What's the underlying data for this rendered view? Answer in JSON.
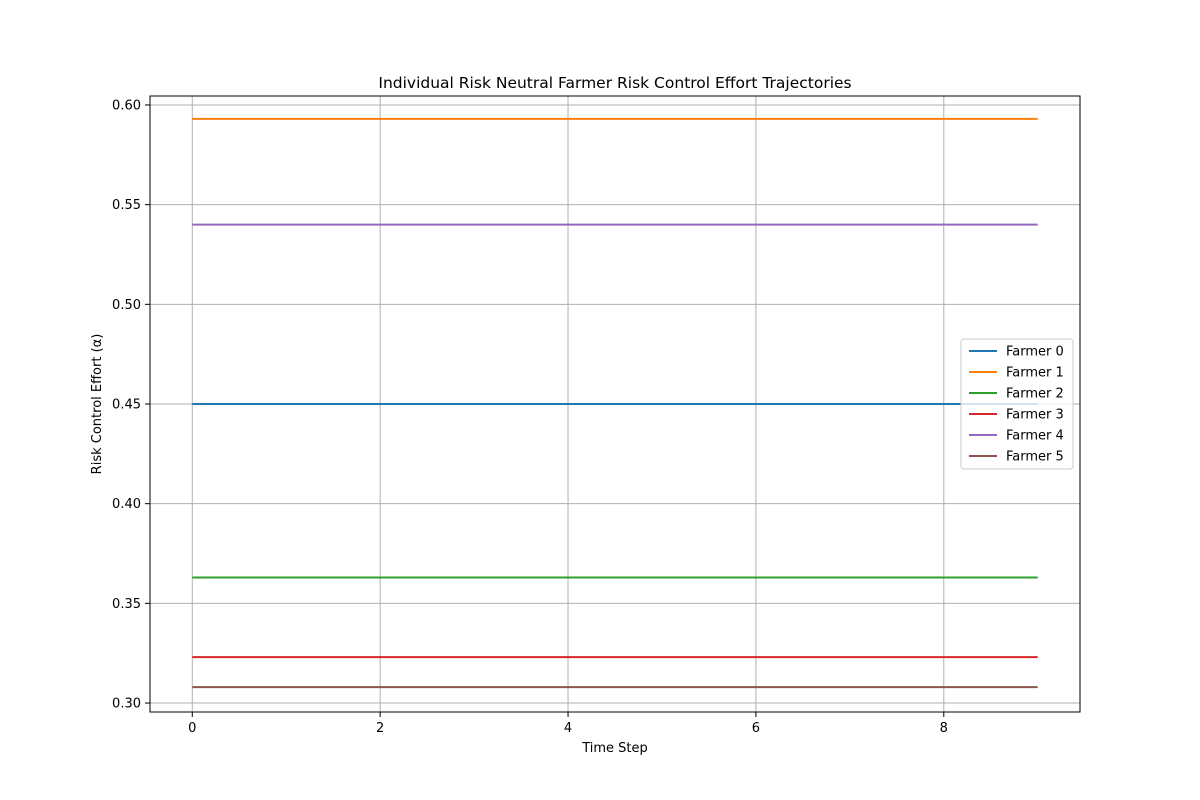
{
  "chart_data": {
    "type": "line",
    "title": "Individual Risk Neutral Farmer Risk Control Effort Trajectories",
    "xlabel": "Time Step",
    "ylabel": "Risk Control Effort (α)",
    "x": [
      0,
      1,
      2,
      3,
      4,
      5,
      6,
      7,
      8,
      9
    ],
    "xlim": [
      -0.45,
      9.45
    ],
    "ylim": [
      0.2955,
      0.6045
    ],
    "xticks": [
      0,
      2,
      4,
      6,
      8
    ],
    "yticks": [
      0.3,
      0.35,
      0.4,
      0.45,
      0.5,
      0.55,
      0.6
    ],
    "xtick_labels": [
      "0",
      "2",
      "4",
      "6",
      "8"
    ],
    "ytick_labels": [
      "0.30",
      "0.35",
      "0.40",
      "0.45",
      "0.50",
      "0.55",
      "0.60"
    ],
    "grid": true,
    "legend_position": "center-right",
    "series": [
      {
        "name": "Farmer 0",
        "color": "#1f77b4",
        "values": [
          0.45,
          0.45,
          0.45,
          0.45,
          0.45,
          0.45,
          0.45,
          0.45,
          0.45,
          0.45
        ]
      },
      {
        "name": "Farmer 1",
        "color": "#ff7f0e",
        "values": [
          0.593,
          0.593,
          0.593,
          0.593,
          0.593,
          0.593,
          0.593,
          0.593,
          0.593,
          0.593
        ]
      },
      {
        "name": "Farmer 2",
        "color": "#2ca02c",
        "values": [
          0.363,
          0.363,
          0.363,
          0.363,
          0.363,
          0.363,
          0.363,
          0.363,
          0.363,
          0.363
        ]
      },
      {
        "name": "Farmer 3",
        "color": "#d62728",
        "values": [
          0.323,
          0.323,
          0.323,
          0.323,
          0.323,
          0.323,
          0.323,
          0.323,
          0.323,
          0.323
        ]
      },
      {
        "name": "Farmer 4",
        "color": "#9467bd",
        "values": [
          0.54,
          0.54,
          0.54,
          0.54,
          0.54,
          0.54,
          0.54,
          0.54,
          0.54,
          0.54
        ]
      },
      {
        "name": "Farmer 5",
        "color": "#8c564b",
        "values": [
          0.308,
          0.308,
          0.308,
          0.308,
          0.308,
          0.308,
          0.308,
          0.308,
          0.308,
          0.308
        ]
      }
    ]
  }
}
